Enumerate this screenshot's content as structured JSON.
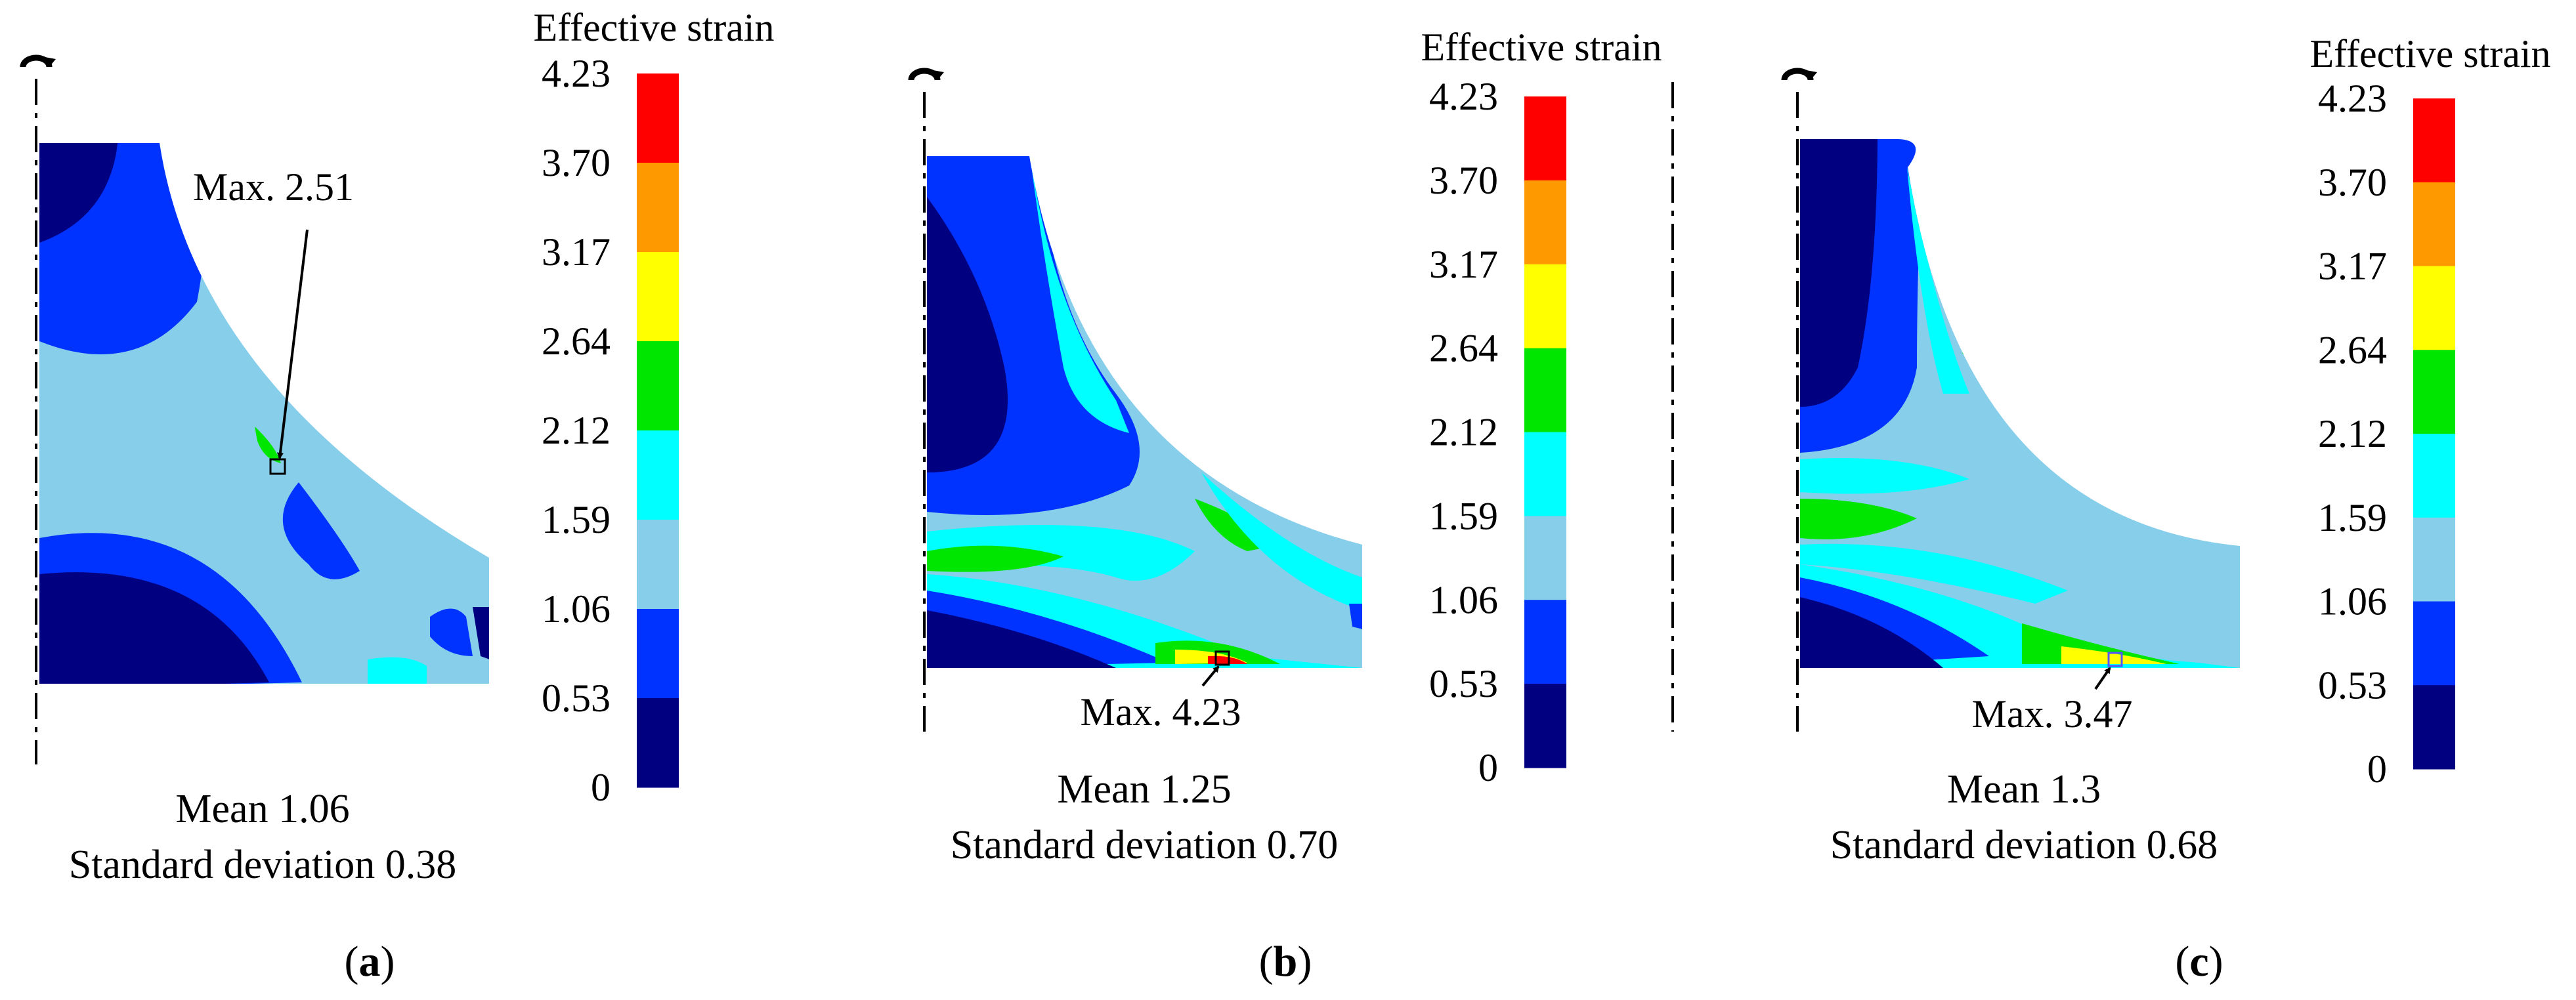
{
  "colorbar": {
    "title": "Effective strain",
    "ticks": [
      "4.23",
      "3.70",
      "3.17",
      "2.64",
      "2.12",
      "1.59",
      "1.06",
      "0.53",
      "0"
    ],
    "bands": [
      "#ff0000",
      "#ff9900",
      "#ffff00",
      "#00e600",
      "#00ffff",
      "#87ceeb",
      "#0033ff",
      "#000080"
    ]
  },
  "panels": [
    {
      "id": "a",
      "max_label": "Max. 2.51",
      "mean_label": "Mean 1.06",
      "sd_label": "Standard deviation 0.38",
      "caption_letter": "a"
    },
    {
      "id": "b",
      "max_label": "Max. 4.23",
      "mean_label": "Mean 1.25",
      "sd_label": "Standard deviation 0.70",
      "caption_letter": "b"
    },
    {
      "id": "c",
      "max_label": "Max. 3.47",
      "mean_label": "Mean 1.3",
      "sd_label": "Standard deviation 0.68",
      "caption_letter": "c"
    }
  ],
  "caption_paren_open": "(",
  "caption_paren_close": ")"
}
